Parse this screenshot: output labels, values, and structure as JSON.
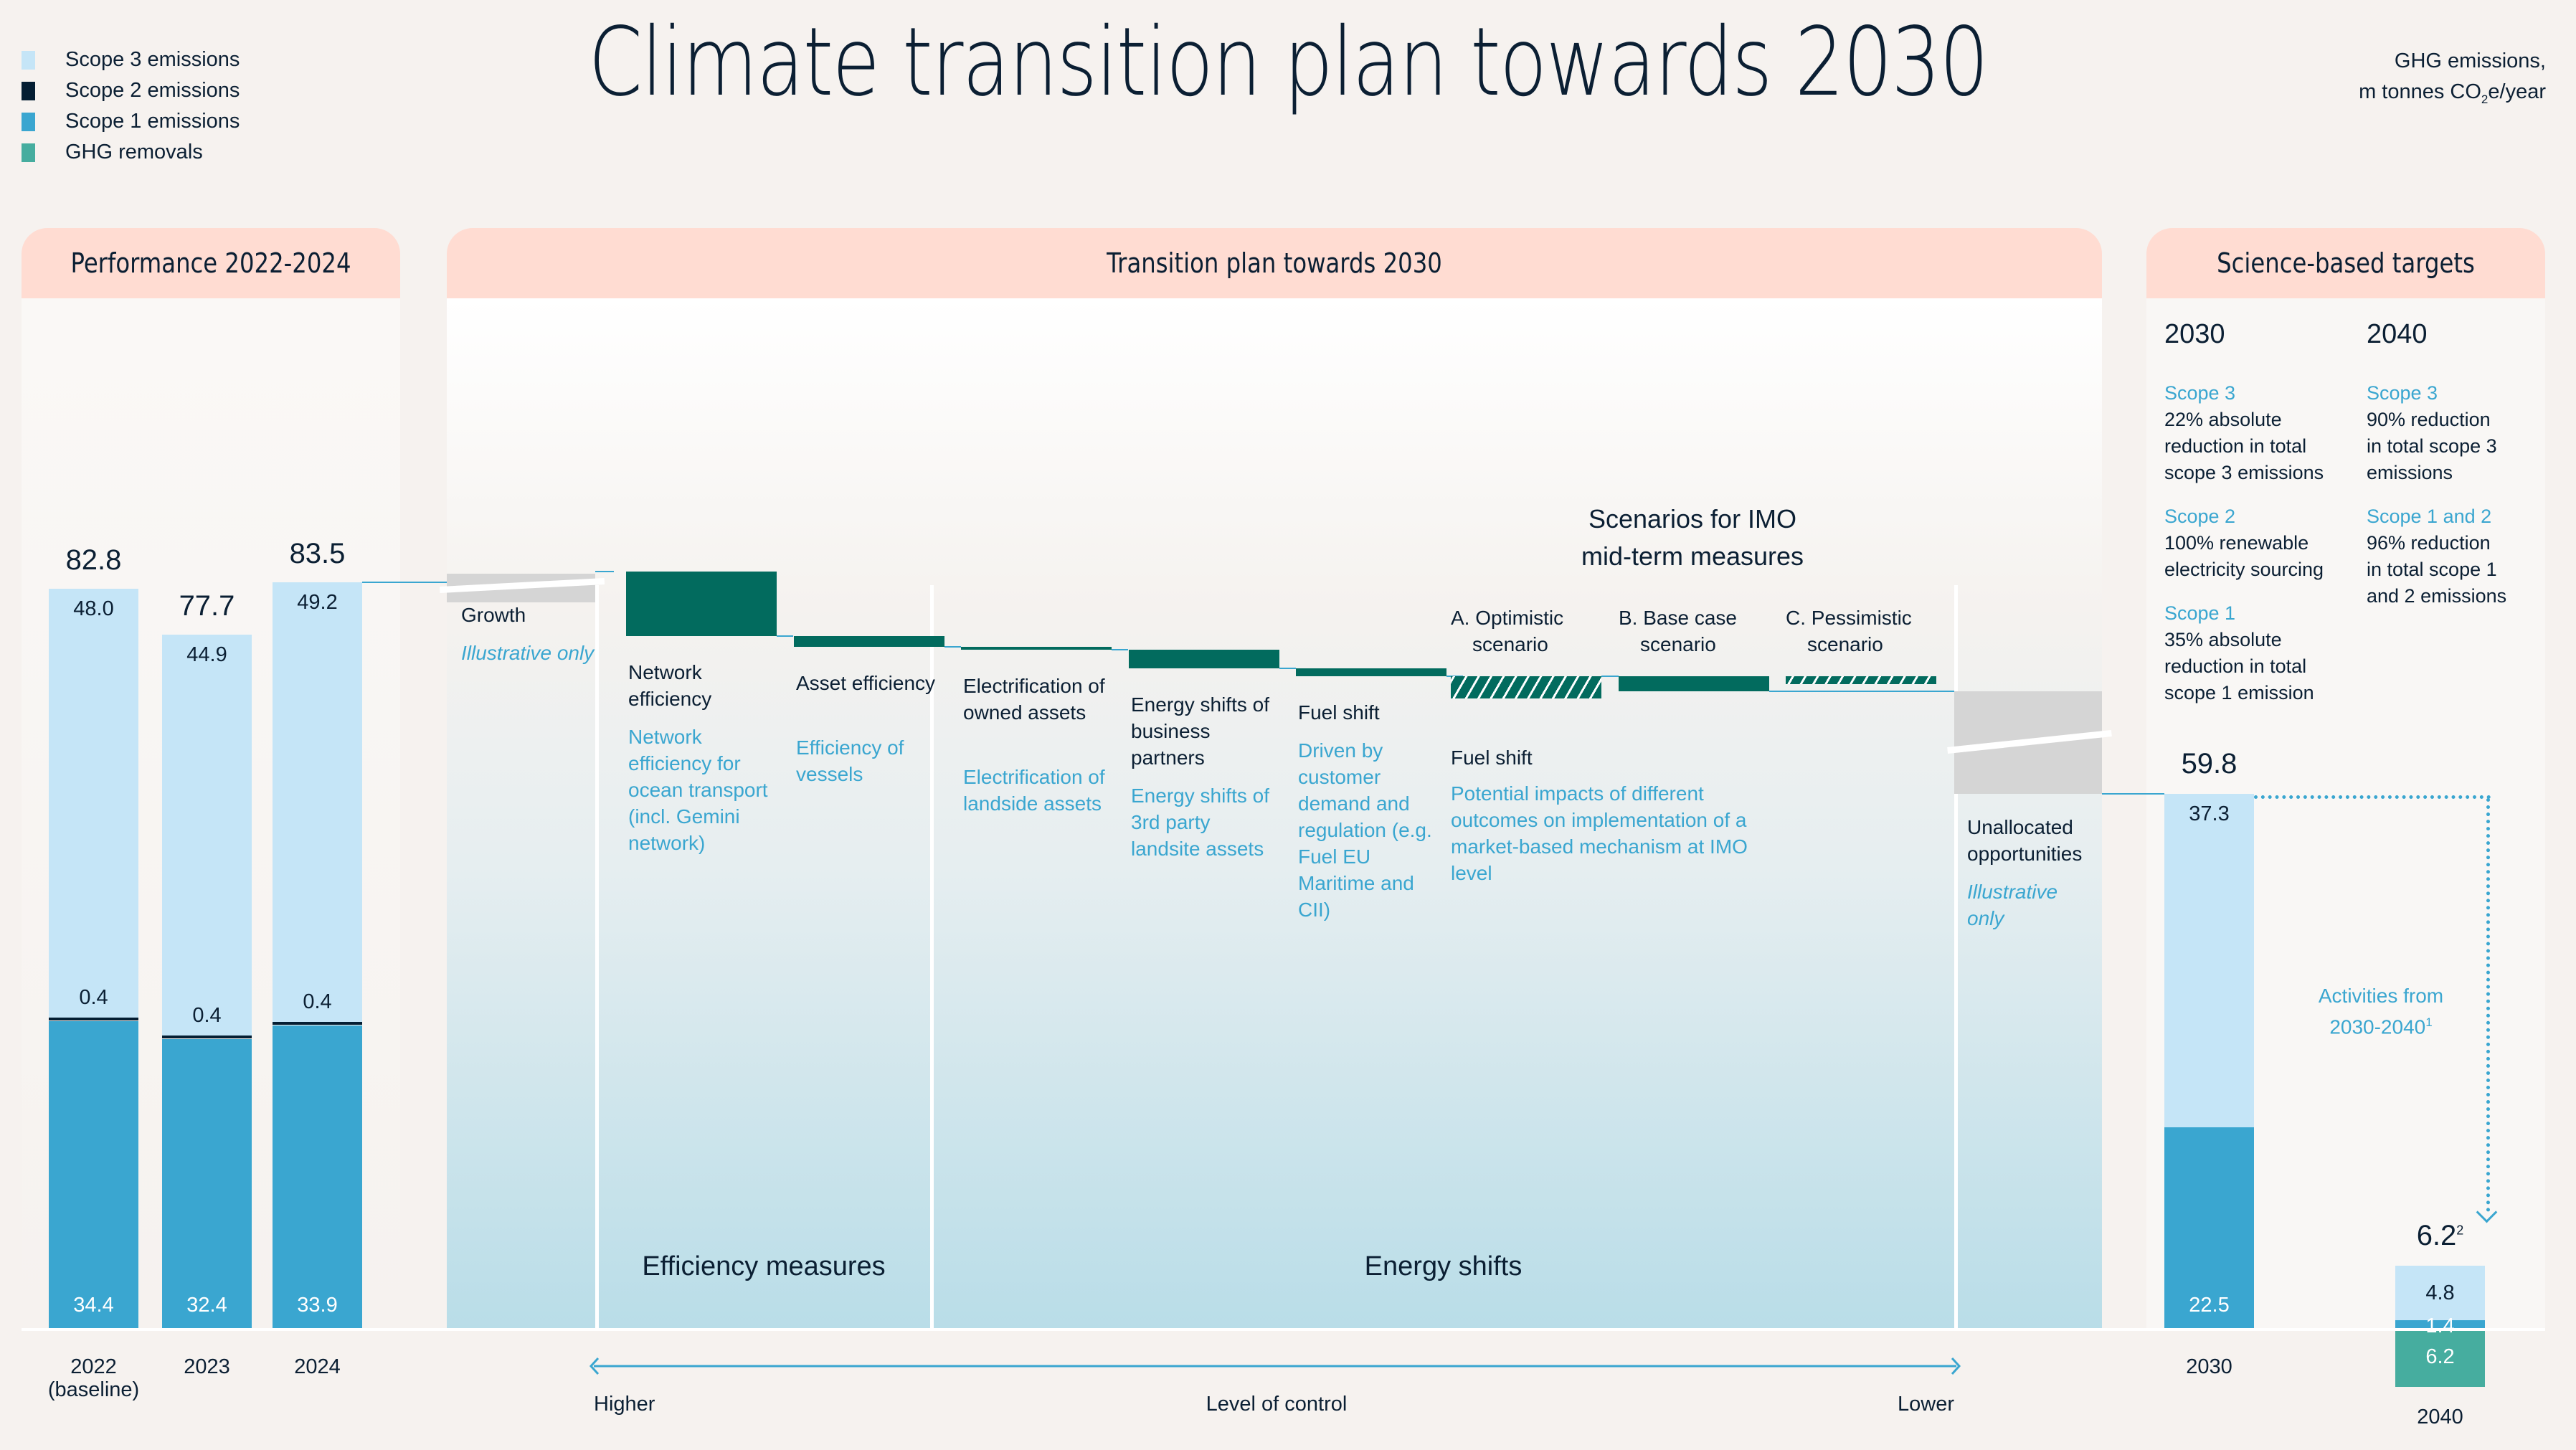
{
  "title": "Climate transition plan towards 2030",
  "units": {
    "line1": "GHG emissions,",
    "line2_pre": "m tonnes CO",
    "line2_sub": "2",
    "line2_post": "e/year"
  },
  "legend": [
    {
      "label": "Scope 3 emissions",
      "color": "#c5e5f7"
    },
    {
      "label": "Scope 2 emissions",
      "color": "#041e33"
    },
    {
      "label": "Scope 1 emissions",
      "color": "#3aa6d0"
    },
    {
      "label": "GHG removals",
      "color": "#46ad9f"
    }
  ],
  "panels": {
    "performance": "Performance 2022-2024",
    "transition": "Transition plan towards 2030",
    "targets": "Science-based targets"
  },
  "chart_data": {
    "type": "bar",
    "title": "Climate transition plan towards 2030",
    "ylabel": "GHG emissions, m tonnes CO2e/year",
    "ylim": [
      0,
      90
    ],
    "performance_bars": [
      {
        "label": "2022",
        "sublabel": "(baseline)",
        "total": "82.8",
        "scope3": 48.0,
        "scope3_label": "48.0",
        "scope2": 0.4,
        "scope2_label": "0.4",
        "scope1": 34.4,
        "scope1_label": "34.4"
      },
      {
        "label": "2023",
        "sublabel": "",
        "total": "77.7",
        "scope3": 44.9,
        "scope3_label": "44.9",
        "scope2": 0.4,
        "scope2_label": "0.4",
        "scope1": 32.4,
        "scope1_label": "32.4"
      },
      {
        "label": "2024",
        "sublabel": "",
        "total": "83.5",
        "scope3": 49.2,
        "scope3_label": "49.2",
        "scope2": 0.4,
        "scope2_label": "0.4",
        "scope1": 33.9,
        "scope1_label": "33.9"
      }
    ],
    "waterfall": [
      {
        "key": "growth",
        "title": "Growth",
        "desc": "Illustrative only",
        "italic": true,
        "delta": 0,
        "illustrative": true
      },
      {
        "key": "network",
        "title": "Network efficiency",
        "desc": "Network efficiency for ocean transport (incl. Gemini network)",
        "delta": -7.2
      },
      {
        "key": "asset",
        "title": "Asset efficiency",
        "desc": "Efficiency of vessels",
        "delta": -1.2
      },
      {
        "key": "electrification",
        "title": "Electrification of owned assets",
        "desc": "Electrification of landside assets",
        "delta": -0.3
      },
      {
        "key": "energy3p",
        "title": "Energy shifts of business partners",
        "desc": "Energy shifts of 3rd party landsite assets",
        "delta": -2.1
      },
      {
        "key": "fuel",
        "title": "Fuel shift",
        "desc": "Driven by customer demand and regulation (e.g. Fuel EU Maritime and CII)",
        "delta": -0.9
      }
    ],
    "scenarios": {
      "heading_line1": "Scenarios for IMO",
      "heading_line2": "mid-term measures",
      "title": "Fuel shift",
      "desc": "Potential impacts of different outcomes on implementation of a market-based mechanism at IMO level",
      "items": [
        {
          "label": "A. Optimistic",
          "label2": "scenario",
          "delta": -2.5,
          "hatched": true
        },
        {
          "label": "B. Base case",
          "label2": "scenario",
          "delta": -1.7,
          "hatched": false
        },
        {
          "label": "C. Pessimistic",
          "label2": "scenario",
          "delta": -0.9,
          "hatched": true
        }
      ]
    },
    "unallocated": {
      "title": "Unallocated opportunities",
      "desc": "Illustrative only"
    },
    "groups": {
      "efficiency": "Efficiency measures",
      "energy": "Energy shifts"
    },
    "control_axis": {
      "higher": "Higher",
      "label": "Level of control",
      "lower": "Lower"
    },
    "target_bars": [
      {
        "label": "2030",
        "total": "59.8",
        "scope3": 37.3,
        "scope3_label": "37.3",
        "scope1": 22.5,
        "scope1_label": "22.5"
      },
      {
        "label": "2040",
        "total": "6.2",
        "total_sup": "2",
        "scope3": 4.8,
        "scope3_label": "4.8",
        "scope1": 1.4,
        "scope1_label": "1.4",
        "removals": 6.2,
        "removals_label": "6.2"
      }
    ],
    "activities_note": {
      "line1": "Activities from",
      "line2": "2030-2040",
      "sup": "1"
    }
  },
  "targets": {
    "y2030": {
      "year": "2030",
      "items": [
        {
          "scope": "Scope 3",
          "text": [
            "22% absolute",
            "reduction in total",
            "scope 3 emissions"
          ]
        },
        {
          "scope": "Scope 2",
          "text": [
            "100% renewable",
            "electricity sourcing"
          ]
        },
        {
          "scope": "Scope 1",
          "text": [
            "35% absolute",
            "reduction in total",
            "scope 1 emission"
          ]
        }
      ]
    },
    "y2040": {
      "year": "2040",
      "items": [
        {
          "scope": "Scope 3",
          "text": [
            "90% reduction",
            "in total scope 3",
            "emissions"
          ]
        },
        {
          "scope": "Scope 1 and 2",
          "text": [
            "96% reduction",
            "in total scope 1",
            "and 2 emissions"
          ]
        }
      ]
    }
  },
  "colors": {
    "scope3": "#c5e5f7",
    "scope2": "#041e33",
    "scope1": "#3aa6d0",
    "removals": "#46ad9f",
    "reduction": "#026b5e",
    "illustrative": "#d5d5d5",
    "panel_header": "#ffdcd2",
    "accent": "#3aa6d0"
  }
}
